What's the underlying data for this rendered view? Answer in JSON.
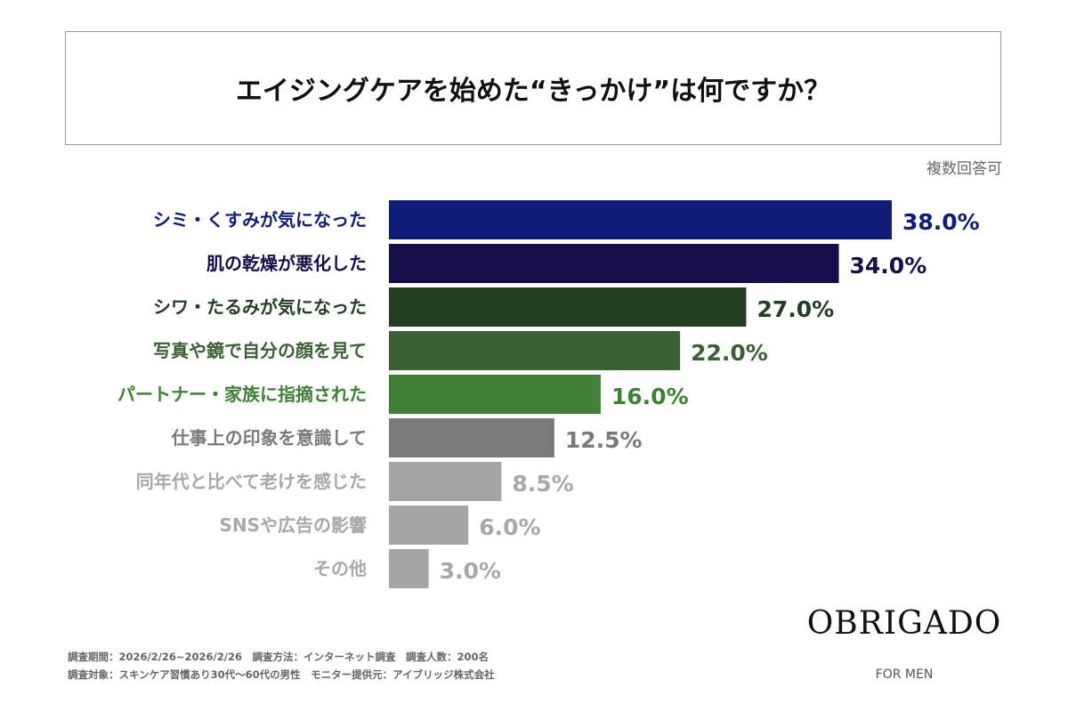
{
  "title": "エイジングケアを始めた“きっかけ”は何ですか？",
  "note": "複数回答可",
  "chart_data": {
    "type": "bar",
    "orientation": "horizontal",
    "categories": [
      "シミ・くすみが気になった",
      "肌の乾燥が悪化した",
      "シワ・たるみが気になった",
      "写真や鏡で自分の顔を見て",
      "パートナー・家族に指摘された",
      "仕事上の印象を意識して",
      "同年代と比べて老けを感じた",
      "SNSや広告の影響",
      "その他"
    ],
    "values": [
      38.0,
      34.0,
      27.0,
      22.0,
      16.0,
      12.5,
      8.5,
      6.0,
      3.0
    ],
    "data_labels": [
      "38.0%",
      "34.0%",
      "27.0%",
      "22.0%",
      "16.0%",
      "12.5%",
      "8.5%",
      "6.0%",
      "3.0%"
    ],
    "colors": [
      "#0f1c78",
      "#15104b",
      "#233f22",
      "#3b6034",
      "#3f8036",
      "#7a7a7a",
      "#a5a5a5",
      "#a5a5a5",
      "#a5a5a5"
    ],
    "label_colors": [
      "#0f1c78",
      "#15104b",
      "#233f22",
      "#3b6034",
      "#3f8036",
      "#7a7a7a",
      "#a8a8a8",
      "#a8a8a8",
      "#a8a8a8"
    ],
    "unit": "%"
  },
  "footer": {
    "line1": "調査期間：2026/2/26~2026/2/26　調査方法：インターネット調査　調査人数：200名",
    "line2": "調査対象：スキンケア習慣あり30代〜60代の男性　モニター提供元：アイブリッジ株式会社"
  },
  "logo": {
    "name": "OBRIGADO",
    "sub": "FOR MEN"
  }
}
